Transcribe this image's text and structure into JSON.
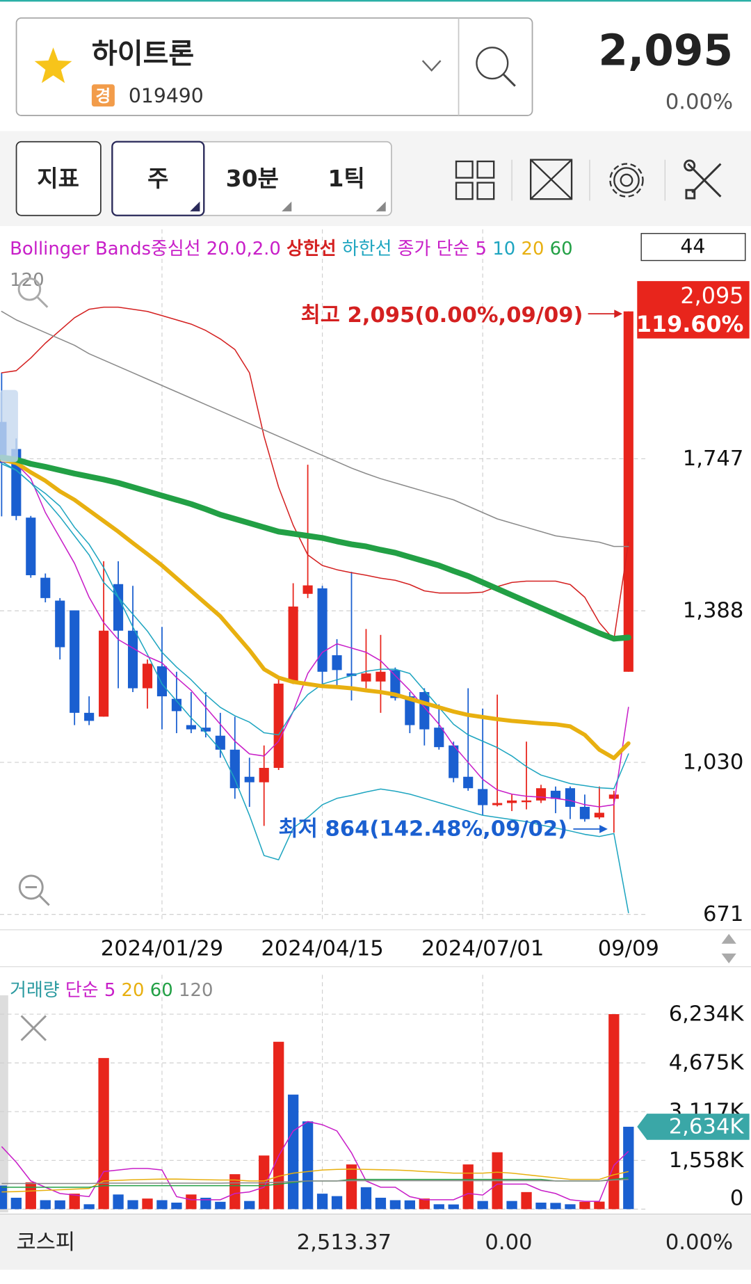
{
  "header": {
    "name": "하이트론",
    "market_badge": "경",
    "code": "019490",
    "price": "2,095",
    "change": "0.00%"
  },
  "toolbar": {
    "indicator": "지표",
    "periods": [
      "주",
      "30분",
      "1틱"
    ]
  },
  "chart_data": [
    {
      "type": "candlestick",
      "indicator_label": "Bollinger Bands중심선 20.0,2.0",
      "ma_label": "종가 단순",
      "visible_count": 44,
      "categories": [
        null,
        null,
        null,
        null,
        null,
        null,
        null,
        null,
        null,
        null,
        null,
        "2024/01/29",
        null,
        null,
        null,
        null,
        null,
        null,
        null,
        null,
        null,
        null,
        "2024/04/15",
        null,
        null,
        null,
        null,
        null,
        null,
        null,
        null,
        null,
        null,
        "2024/07/01",
        null,
        null,
        null,
        null,
        null,
        null,
        null,
        null,
        null,
        "09/09"
      ],
      "open": [
        1834,
        1770,
        1608,
        1466,
        1412,
        1389,
        1147,
        1138,
        1451,
        1341,
        1205,
        1257,
        1180,
        1118,
        1112,
        1093,
        1060,
        996,
        983,
        1017,
        1220,
        1428,
        1441,
        1283,
        1240,
        1221,
        1221,
        1248,
        1186,
        1196,
        1112,
        1070,
        996,
        967,
        929,
        934,
        936,
        940,
        963,
        969,
        925,
        900,
        944,
        1244
      ],
      "high": [
        1950,
        1795,
        1612,
        1476,
        1418,
        1389,
        1186,
        1505,
        1505,
        1447,
        1273,
        1350,
        1244,
        1196,
        1196,
        1147,
        1138,
        1041,
        1070,
        1228,
        1453,
        1733,
        1447,
        1321,
        1480,
        1345,
        1331,
        1254,
        1196,
        1205,
        1167,
        1079,
        1205,
        1157,
        1190,
        954,
        1079,
        977,
        973,
        973,
        954,
        973,
        963,
        2095
      ],
      "low": [
        1611,
        1602,
        1466,
        1408,
        1273,
        1118,
        1118,
        1138,
        1205,
        1196,
        1157,
        1108,
        1099,
        1099,
        1089,
        1041,
        944,
        925,
        880,
        1012,
        1215,
        1418,
        1215,
        1205,
        1176,
        1205,
        1147,
        1176,
        1099,
        1070,
        1060,
        983,
        963,
        905,
        926,
        915,
        919,
        934,
        910,
        896,
        890,
        896,
        864,
        1244
      ],
      "close": [
        1737,
        1612,
        1472,
        1418,
        1302,
        1147,
        1128,
        1341,
        1341,
        1205,
        1263,
        1186,
        1151,
        1108,
        1103,
        1060,
        969,
        983,
        1017,
        1216,
        1398,
        1448,
        1244,
        1248,
        1234,
        1240,
        1244,
        1182,
        1118,
        1108,
        1066,
        993,
        969,
        929,
        934,
        940,
        940,
        969,
        944,
        925,
        896,
        911,
        954,
        2095
      ],
      "up_color": "#e8251c",
      "down_color": "#1a5fd0",
      "lines": [
        {
          "name": "상한선",
          "color": "#d42020",
          "width": 1.3,
          "values": [
            1950,
            1955,
            1985,
            2020,
            2050,
            2080,
            2100,
            2105,
            2105,
            2100,
            2095,
            2085,
            2075,
            2065,
            2050,
            2030,
            2005,
            1950,
            1800,
            1680,
            1590,
            1520,
            1495,
            1485,
            1478,
            1472,
            1465,
            1460,
            1450,
            1435,
            1430,
            1430,
            1430,
            1432,
            1445,
            1455,
            1458,
            1458,
            1458,
            1450,
            1420,
            1360,
            1320,
            1550
          ]
        },
        {
          "name": "하한선",
          "color": "#1ea5c0",
          "width": 1.3,
          "values": [
            1740,
            1720,
            1690,
            1665,
            1635,
            1585,
            1545,
            1490,
            1420,
            1350,
            1285,
            1215,
            1175,
            1135,
            1100,
            1060,
            990,
            905,
            810,
            800,
            875,
            900,
            930,
            945,
            952,
            960,
            967,
            962,
            955,
            945,
            935,
            925,
            915,
            905,
            900,
            895,
            890,
            882,
            875,
            868,
            860,
            855,
            862,
            675
          ]
        },
        {
          "name": "5",
          "color": "#c81ec8",
          "width": 1.3,
          "values": [
            1740,
            1735,
            1700,
            1620,
            1560,
            1500,
            1420,
            1360,
            1320,
            1300,
            1280,
            1265,
            1230,
            1200,
            1160,
            1120,
            1080,
            1050,
            1045,
            1080,
            1150,
            1240,
            1290,
            1310,
            1300,
            1290,
            1270,
            1235,
            1200,
            1160,
            1120,
            1070,
            1030,
            990,
            965,
            955,
            950,
            948,
            945,
            940,
            930,
            925,
            930,
            1160
          ]
        },
        {
          "name": "10",
          "color": "#1ea5c0",
          "width": 1.3,
          "values": [
            1735,
            1720,
            1690,
            1650,
            1610,
            1565,
            1520,
            1455,
            1420,
            1380,
            1340,
            1290,
            1255,
            1225,
            1190,
            1160,
            1140,
            1125,
            1100,
            1095,
            1150,
            1190,
            1215,
            1225,
            1235,
            1245,
            1250,
            1250,
            1240,
            1200,
            1160,
            1120,
            1095,
            1080,
            1065,
            1045,
            1020,
            1000,
            990,
            980,
            975,
            970,
            968,
            1050
          ]
        },
        {
          "name": "20",
          "color": "#e8b010",
          "width": 5,
          "values": [
            1745,
            1737,
            1715,
            1695,
            1670,
            1650,
            1625,
            1600,
            1575,
            1548,
            1522,
            1495,
            1465,
            1435,
            1405,
            1375,
            1335,
            1295,
            1250,
            1230,
            1220,
            1215,
            1210,
            1208,
            1205,
            1200,
            1196,
            1190,
            1180,
            1170,
            1160,
            1150,
            1142,
            1137,
            1132,
            1128,
            1125,
            1122,
            1120,
            1115,
            1095,
            1060,
            1040,
            1075
          ]
        },
        {
          "name": "60",
          "color": "#22a045",
          "width": 7,
          "values": [
            1750,
            1745,
            1735,
            1728,
            1720,
            1712,
            1705,
            1698,
            1690,
            1680,
            1670,
            1660,
            1650,
            1640,
            1628,
            1615,
            1605,
            1595,
            1585,
            1575,
            1570,
            1565,
            1560,
            1552,
            1545,
            1540,
            1532,
            1525,
            1515,
            1505,
            1495,
            1482,
            1470,
            1455,
            1440,
            1425,
            1410,
            1395,
            1380,
            1365,
            1350,
            1335,
            1322,
            1325
          ]
        },
        {
          "name": "120",
          "color": "#8a8a8a",
          "width": 1.3,
          "values": [
            2095,
            2075,
            2060,
            2045,
            2030,
            2015,
            1995,
            1980,
            1965,
            1950,
            1935,
            1920,
            1905,
            1890,
            1875,
            1860,
            1845,
            1830,
            1815,
            1800,
            1785,
            1770,
            1755,
            1740,
            1725,
            1712,
            1700,
            1690,
            1680,
            1670,
            1660,
            1650,
            1635,
            1620,
            1605,
            1595,
            1585,
            1575,
            1565,
            1560,
            1555,
            1550,
            1540,
            1540
          ]
        }
      ],
      "ylim": [
        654,
        2192
      ],
      "yticks": [
        671,
        {
          "value": 1030,
          "label": "1,030"
        },
        {
          "value": 1388,
          "label": "1,388"
        },
        {
          "value": 1747,
          "label": "1,747"
        }
      ],
      "grid": true,
      "current": {
        "value": 2095,
        "label": "2,095"
      },
      "change_label": "119.60%",
      "annotations": [
        {
          "text": "최고 2,095(0.00%,09/09)",
          "color": "#d42020"
        },
        {
          "text": "최저 864(142.48%,09/02)",
          "color": "#1a5fd0"
        }
      ]
    },
    {
      "type": "bar",
      "title": "거래량",
      "ma_label": "단순",
      "values": [
        753000,
        364000,
        857000,
        286000,
        280000,
        494000,
        156000,
        4831000,
        468000,
        286000,
        338000,
        286000,
        208000,
        468000,
        364000,
        234000,
        1117000,
        260000,
        1714000,
        5351000,
        3662000,
        2805000,
        494000,
        416000,
        1429000,
        701000,
        364000,
        286000,
        280000,
        338000,
        156000,
        150000,
        1429000,
        260000,
        1818000,
        260000,
        545000,
        208000,
        200000,
        156000,
        234000,
        240000,
        6234000,
        2634000
      ],
      "up_color": "#e8251c",
      "down_color": "#1a5fd0",
      "lines": [
        {
          "name": "5",
          "color": "#c81ec8",
          "values": [
            2000000,
            1500000,
            900000,
            700000,
            500000,
            450000,
            400000,
            1200000,
            1250000,
            1300000,
            1300000,
            1250000,
            400000,
            300000,
            300000,
            300000,
            500000,
            550000,
            700000,
            1700000,
            2500000,
            2800000,
            2700000,
            2500000,
            1800000,
            900000,
            700000,
            700000,
            400000,
            300000,
            300000,
            300000,
            500000,
            450000,
            800000,
            800000,
            800000,
            600000,
            500000,
            300000,
            250000,
            250000,
            1400000,
            1850000
          ]
        },
        {
          "name": "20",
          "color": "#e8b010",
          "values": [
            550000,
            560000,
            580000,
            600000,
            620000,
            640000,
            660000,
            900000,
            920000,
            940000,
            950000,
            960000,
            960000,
            950000,
            940000,
            930000,
            930000,
            900000,
            900000,
            1050000,
            1150000,
            1200000,
            1250000,
            1270000,
            1280000,
            1270000,
            1260000,
            1250000,
            1230000,
            1200000,
            1180000,
            1150000,
            1150000,
            1150000,
            1180000,
            1150000,
            1100000,
            1050000,
            1000000,
            950000,
            950000,
            950000,
            1100000,
            1200000
          ]
        },
        {
          "name": "60",
          "color": "#22a045",
          "values": [
            700000,
            700000,
            700000,
            700000,
            700000,
            700000,
            700000,
            750000,
            750000,
            750000,
            750000,
            750000,
            750000,
            750000,
            750000,
            750000,
            750000,
            750000,
            750000,
            800000,
            850000,
            900000,
            900000,
            900000,
            950000,
            950000,
            950000,
            950000,
            950000,
            950000,
            950000,
            950000,
            950000,
            950000,
            950000,
            950000,
            950000,
            950000,
            900000,
            900000,
            900000,
            900000,
            950000,
            1000000
          ]
        },
        {
          "name": "120",
          "color": "#8a8a8a",
          "values": [
            820000,
            820000,
            820000,
            820000,
            820000,
            820000,
            820000,
            830000,
            830000,
            830000,
            830000,
            830000,
            830000,
            830000,
            830000,
            830000,
            840000,
            840000,
            840000,
            860000,
            880000,
            900000,
            900000,
            900000,
            910000,
            910000,
            910000,
            910000,
            910000,
            910000,
            910000,
            910000,
            910000,
            910000,
            910000,
            910000,
            910000,
            910000,
            900000,
            900000,
            900000,
            900000,
            930000,
            950000
          ]
        }
      ],
      "ylim": [
        0,
        7229000
      ],
      "yticks": [
        0,
        {
          "value": 1558000,
          "label": "1,558K"
        },
        {
          "value": 3117000,
          "label": "3,117K"
        },
        {
          "value": 4675000,
          "label": "4,675K"
        },
        {
          "value": 6234000,
          "label": "6,234K"
        }
      ],
      "grid": true,
      "last_label": "2,634K"
    }
  ],
  "footer": {
    "index_name": "코스피",
    "index_value": "2,513.37",
    "index_change": "0.00",
    "index_change_pct": "0.00%"
  }
}
